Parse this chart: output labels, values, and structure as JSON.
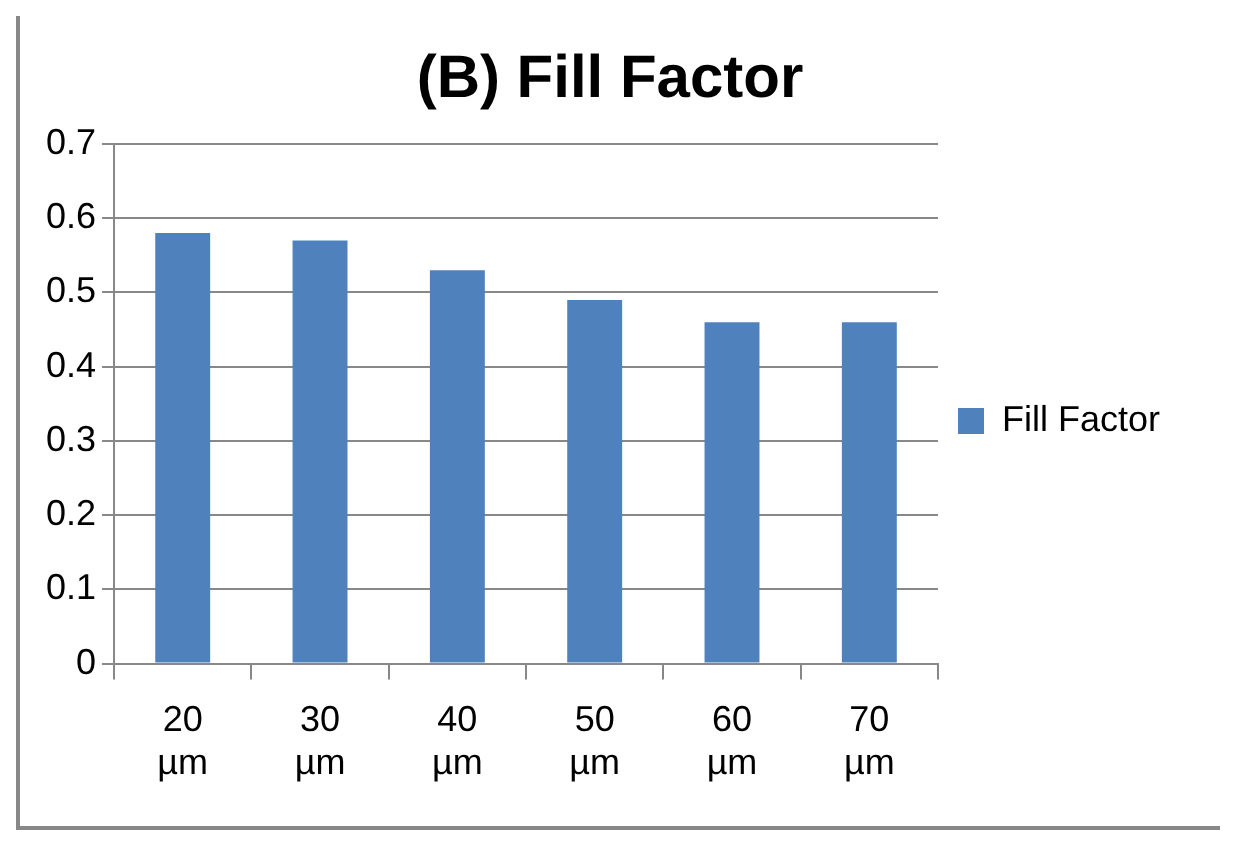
{
  "chart_data": {
    "type": "bar",
    "title": "(B) Fill Factor",
    "categories": [
      "20 µm",
      "30 µm",
      "40 µm",
      "50 µm",
      "60 µm",
      "70 µm"
    ],
    "series": [
      {
        "name": "Fill Factor",
        "color": "#4f81bd",
        "values": [
          0.58,
          0.57,
          0.53,
          0.49,
          0.46,
          0.46
        ]
      }
    ],
    "ylim": [
      0,
      0.7
    ],
    "yticks": [
      0,
      0.1,
      0.2,
      0.3,
      0.4,
      0.5,
      0.6,
      0.7
    ],
    "grid": "y",
    "legend": "right"
  }
}
